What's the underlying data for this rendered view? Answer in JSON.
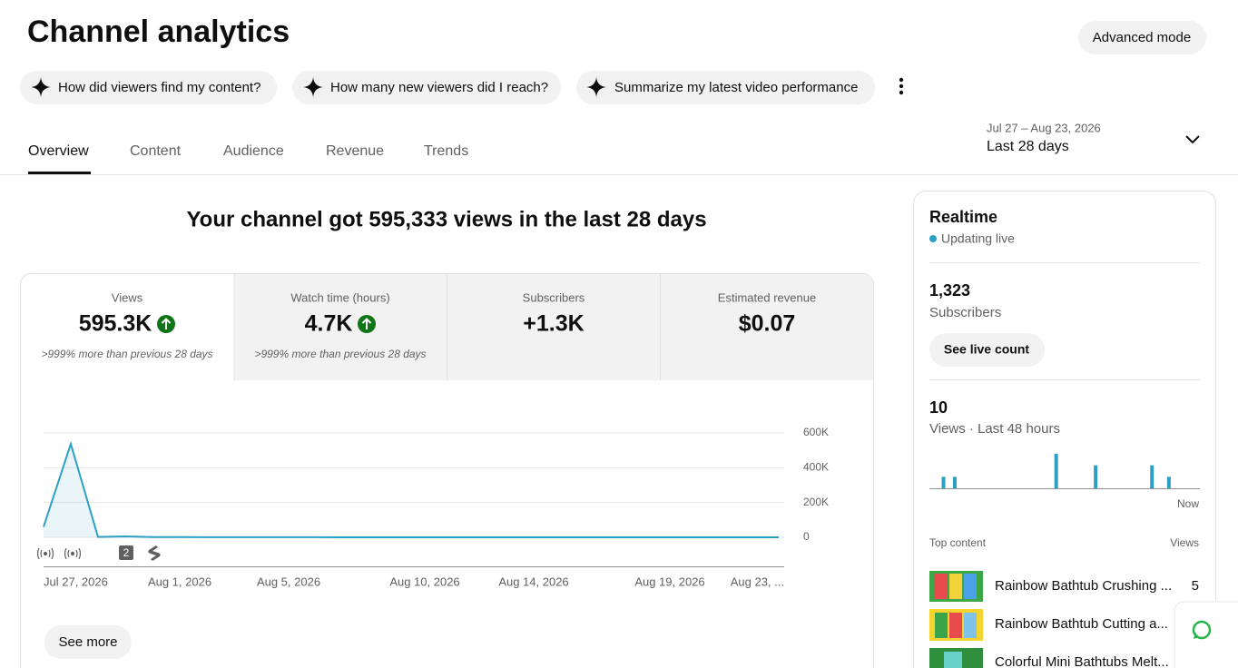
{
  "header": {
    "title": "Channel analytics",
    "advanced_mode": "Advanced mode"
  },
  "prompts": [
    "How did viewers find my content?",
    "How many new viewers did I reach?",
    "Summarize my latest video performance"
  ],
  "tabs": [
    "Overview",
    "Content",
    "Audience",
    "Revenue",
    "Trends"
  ],
  "date_range": {
    "range": "Jul 27 – Aug 23, 2026",
    "label": "Last 28 days"
  },
  "summary": "Your channel got 595,333 views in the last 28 days",
  "metrics": [
    {
      "label": "Views",
      "value": "595.3K",
      "note": ">999% more than previous 28 days"
    },
    {
      "label": "Watch time (hours)",
      "value": "4.7K",
      "note": ">999% more than previous 28 days"
    },
    {
      "label": "Subscribers",
      "value": "+1.3K"
    },
    {
      "label": "Estimated revenue",
      "value": "$0.07"
    }
  ],
  "chart_data": [
    {
      "type": "line",
      "color": "#2ba0c4",
      "categories": [
        "Jul 27, 2026",
        null,
        null,
        null,
        null,
        "Aug 1, 2026",
        null,
        null,
        null,
        "Aug 5, 2026",
        null,
        null,
        null,
        null,
        "Aug 10, 2026",
        null,
        null,
        null,
        "Aug 14, 2026",
        null,
        null,
        null,
        null,
        "Aug 19, 2026",
        null,
        null,
        null,
        "Aug 23, ..."
      ],
      "values": [
        60000,
        537000,
        2000,
        5000,
        1500,
        1000,
        800,
        600,
        500,
        400,
        400,
        300,
        300,
        300,
        300,
        300,
        200,
        200,
        200,
        200,
        200,
        200,
        200,
        200,
        200,
        200,
        200,
        200
      ],
      "ylim": [
        0,
        600000
      ],
      "yticks": [
        0,
        {
          "value": 200000,
          "label": "200K"
        },
        {
          "value": 400000,
          "label": "400K"
        },
        {
          "value": 600000,
          "label": "600K"
        }
      ],
      "grid": true,
      "annotation": "2"
    },
    {
      "type": "bar",
      "color": "#2ba0c4",
      "categories": [
        null,
        null,
        null,
        null,
        null,
        null,
        null,
        null,
        null,
        null,
        null,
        null,
        null,
        null,
        null,
        null,
        null,
        null,
        null,
        null,
        null,
        null,
        null,
        null,
        null,
        null,
        null,
        null,
        null,
        null,
        null,
        null,
        null,
        null,
        null,
        null,
        null,
        null,
        null,
        null,
        null,
        null,
        null,
        null,
        null,
        null,
        null,
        "Now"
      ],
      "values": [
        0,
        0,
        1,
        0,
        1,
        0,
        0,
        0,
        0,
        0,
        0,
        0,
        0,
        0,
        0,
        0,
        0,
        0,
        0,
        0,
        0,
        0,
        3,
        0,
        0,
        0,
        0,
        0,
        0,
        2,
        0,
        0,
        0,
        0,
        0,
        0,
        0,
        0,
        0,
        2,
        0,
        0,
        1,
        0,
        0,
        0,
        0,
        0
      ]
    }
  ],
  "see_more": "See more",
  "realtime": {
    "title": "Realtime",
    "status": "Updating live",
    "subscribers": {
      "value": "1,323",
      "label": "Subscribers"
    },
    "live_count_button": "See live count",
    "views": {
      "value": "10",
      "label": "Views · Last 48 hours"
    }
  },
  "top_content": {
    "header": "Top content",
    "views_header": "Views",
    "items": [
      {
        "title": "Rainbow Bathtub Crushing ...",
        "views": "5"
      },
      {
        "title": "Rainbow Bathtub Cutting a..."
      },
      {
        "title": "Colorful Mini Bathtubs Melt..."
      }
    ]
  }
}
